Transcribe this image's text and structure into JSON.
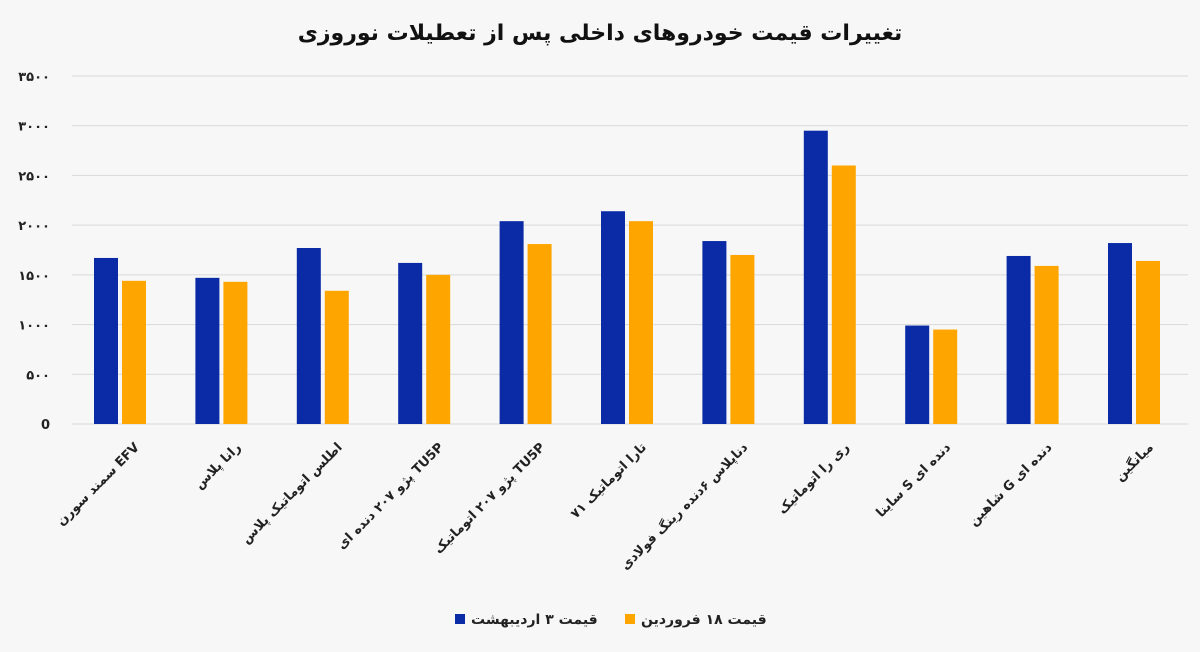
{
  "chart_data": {
    "type": "bar",
    "title": "تغییرات قیمت خودروهای داخلی پس از تعطیلات نوروزی",
    "xlabel": "",
    "ylabel": "",
    "ylim": [
      0,
      3500
    ],
    "yticks": [
      0,
      500,
      1000,
      1500,
      2000,
      2500,
      3000,
      3500
    ],
    "ytick_labels": [
      "0",
      "۵۰۰",
      "۱۰۰۰",
      "۱۵۰۰",
      "۲۰۰۰",
      "۲۵۰۰",
      "۳۰۰۰",
      "۳۵۰۰"
    ],
    "grid": true,
    "legend_position": "bottom",
    "categories": [
      "سمند سورن EFV",
      "رانا پلاس",
      "اطلس اتوماتیک پلاس",
      "پژو ۲۰۷ دنده ای TU5P",
      "پژو ۲۰۷ اتوماتیک TU5P",
      "تارا اتوماتیک ۷۱",
      "دناپلاس ۶دنده رینگ فولادی",
      "ری را اتوماتیک",
      "ساینا S دنده ای",
      "شاهین G دنده ای",
      "میانگین"
    ],
    "series": [
      {
        "name": "قیمت ۳ اردیبهشت",
        "color": "#0a2aa6",
        "values": [
          1670,
          1470,
          1770,
          1620,
          2040,
          2140,
          1840,
          2950,
          990,
          1690,
          1820
        ]
      },
      {
        "name": "قیمت ۱۸ فروردین",
        "color": "#ffa500",
        "values": [
          1440,
          1430,
          1340,
          1500,
          1810,
          2040,
          1700,
          2600,
          950,
          1590,
          1640
        ]
      }
    ]
  }
}
